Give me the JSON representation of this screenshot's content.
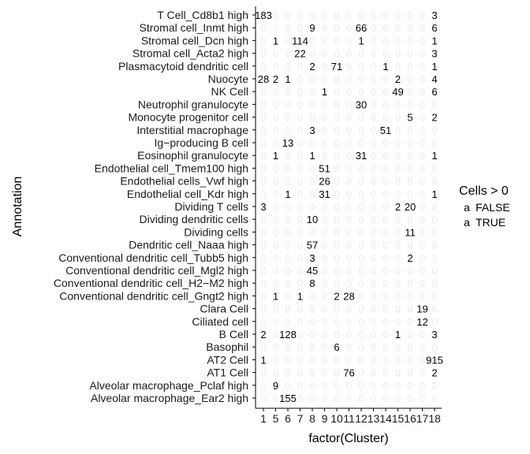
{
  "chart_data": {
    "type": "table",
    "xlabel": "factor(Cluster)",
    "ylabel": "Annotation",
    "x_categories": [
      "1",
      "5",
      "6",
      "7",
      "8",
      "9",
      "10",
      "11",
      "12",
      "13",
      "14",
      "15",
      "16",
      "17",
      "18"
    ],
    "rows": [
      {
        "annotation": "T Cell_Cd8b1 high",
        "counts": {
          "1": 183,
          "18": 3
        }
      },
      {
        "annotation": "Stromal cell_Inmt high",
        "counts": {
          "8": 9,
          "12": 66,
          "18": 6
        }
      },
      {
        "annotation": "Stromal cell_Dcn high",
        "counts": {
          "5": 1,
          "7": 114,
          "12": 1,
          "18": 1
        }
      },
      {
        "annotation": "Stromal cell_Acta2 high",
        "counts": {
          "7": 22,
          "18": 3
        }
      },
      {
        "annotation": "Plasmacytoid dendritic cell",
        "counts": {
          "8": 2,
          "10": 71,
          "14": 1,
          "18": 1
        }
      },
      {
        "annotation": "Nuocyte",
        "counts": {
          "1": 28,
          "5": 2,
          "6": 1,
          "15": 2,
          "18": 4
        }
      },
      {
        "annotation": "NK Cell",
        "counts": {
          "9": 1,
          "15": 49,
          "18": 6
        }
      },
      {
        "annotation": "Neutrophil granulocyte",
        "counts": {
          "12": 30
        }
      },
      {
        "annotation": "Monocyte progenitor cell",
        "counts": {
          "16": 5,
          "18": 2
        }
      },
      {
        "annotation": "Interstitial macrophage",
        "counts": {
          "8": 3,
          "14": 51
        }
      },
      {
        "annotation": "Ig−producing B cell",
        "counts": {
          "6": 13
        }
      },
      {
        "annotation": "Eosinophil granulocyte",
        "counts": {
          "5": 1,
          "8": 1,
          "12": 31,
          "18": 1
        }
      },
      {
        "annotation": "Endothelial cell_Tmem100 high",
        "counts": {
          "9": 51
        }
      },
      {
        "annotation": "Endothelial cells_Vwf high",
        "counts": {
          "9": 26
        }
      },
      {
        "annotation": "Endothelial cell_Kdr high",
        "counts": {
          "6": 1,
          "9": 31,
          "18": 1
        }
      },
      {
        "annotation": "Dividing T cells",
        "counts": {
          "1": 3,
          "15": 2,
          "16": 20
        }
      },
      {
        "annotation": "Dividing dendritic cells",
        "counts": {
          "8": 10
        }
      },
      {
        "annotation": "Dividing cells",
        "counts": {
          "16": 11
        }
      },
      {
        "annotation": "Dendritic cell_Naaa high",
        "counts": {
          "8": 57
        }
      },
      {
        "annotation": "Conventional dendritic cell_Tubb5 high",
        "counts": {
          "8": 3,
          "16": 2
        }
      },
      {
        "annotation": "Conventional dendritic cell_Mgl2 high",
        "counts": {
          "8": 45
        }
      },
      {
        "annotation": "Conventional dendritic cell_H2−M2 high",
        "counts": {
          "8": 8
        }
      },
      {
        "annotation": "Conventional dendritic cell_Gngt2 high",
        "counts": {
          "5": 1,
          "7": 1,
          "10": 2,
          "11": 28
        }
      },
      {
        "annotation": "Clara Cell",
        "counts": {
          "17": 19
        }
      },
      {
        "annotation": "Ciliated cell",
        "counts": {
          "17": 12
        }
      },
      {
        "annotation": "B Cell",
        "counts": {
          "1": 2,
          "6": 128,
          "15": 1,
          "18": 3
        }
      },
      {
        "annotation": "Basophil",
        "counts": {
          "10": 6
        }
      },
      {
        "annotation": "AT2 Cell",
        "counts": {
          "1": 1,
          "18": 915
        }
      },
      {
        "annotation": "AT1 Cell",
        "counts": {
          "11": 76,
          "18": 2
        }
      },
      {
        "annotation": "Alveolar macrophage_Pclaf high",
        "counts": {
          "5": 9
        }
      },
      {
        "annotation": "Alveolar macrophage_Ear2 high",
        "counts": {
          "6": 155
        }
      }
    ],
    "zero_label": "0",
    "colors": {
      "true": "#000000",
      "false": "#ececec"
    },
    "legend": {
      "title": "Cells > 0",
      "position": "right",
      "glyph": "a",
      "items": [
        {
          "label": "FALSE",
          "color": "#ececec"
        },
        {
          "label": "TRUE",
          "color": "#000000"
        }
      ]
    },
    "grid": false
  }
}
